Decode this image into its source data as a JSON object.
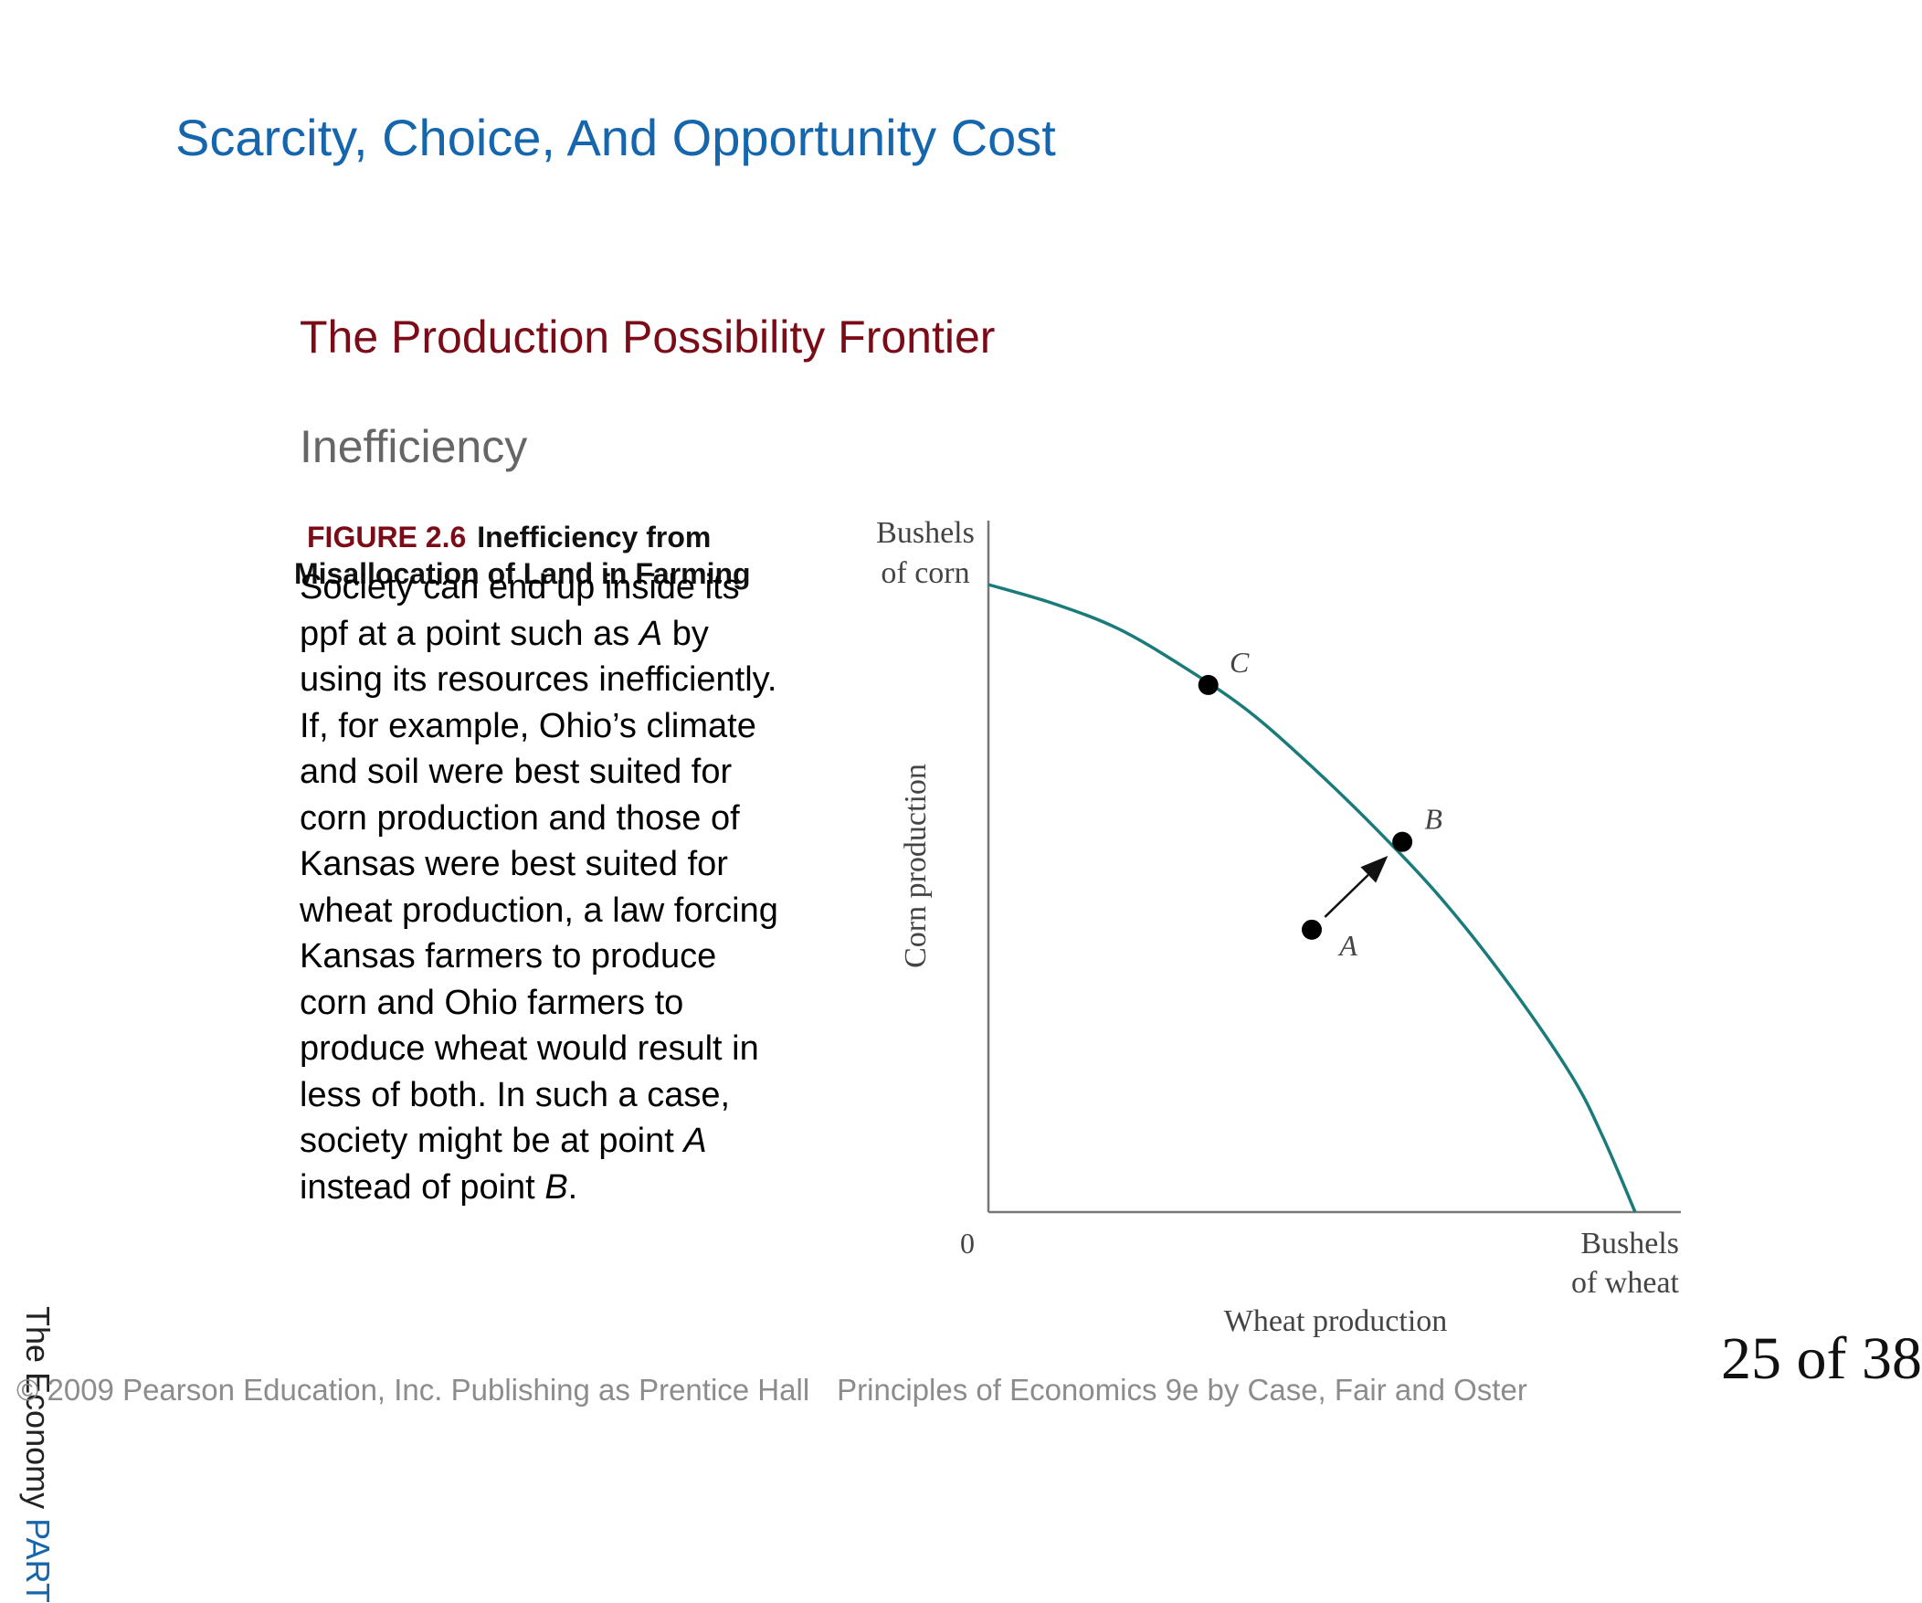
{
  "slide": {
    "title": "Scarcity, Choice, And Opportunity Cost",
    "section_title": "The Production Possibility Frontier",
    "subsection_title": "Inefficiency"
  },
  "caption": {
    "bullet_glyph": "",
    "figure_number": "FIGURE 2.6",
    "figure_title": "Inefficiency from Misallocation of Land in Farming"
  },
  "body": {
    "paragraph1": {
      "before": "Society can end up inside its ppf  at a point such as ",
      "point": "A",
      "after": " by using its resources inefficiently."
    },
    "paragraph2": {
      "before": "If, for example, Ohio’s climate and soil were best suited for corn production and those of Kansas were best suited for wheat production, a law forcing Kansas farmers to produce corn and Ohio farmers to produce wheat would result in less of both. In such a case, society might be at point ",
      "point_a": "A",
      "middle": " instead of point ",
      "point_b": "B",
      "after": "."
    }
  },
  "chart_data": {
    "type": "line",
    "title": "",
    "ylabel": "Corn production",
    "xlabel": "Wheat production",
    "y_axis_unit_label": [
      "Bushels",
      "of corn"
    ],
    "x_axis_unit_label": [
      "Bushels",
      "of wheat"
    ],
    "origin_label": "0",
    "series": [
      {
        "name": "",
        "x": [
          0,
          0.1,
          0.2,
          0.3,
          0.4,
          0.5,
          0.6,
          0.7,
          0.8,
          0.9,
          0.95,
          1.0
        ],
        "y": [
          1.0,
          0.97,
          0.93,
          0.87,
          0.8,
          0.71,
          0.61,
          0.5,
          0.37,
          0.22,
          0.12,
          0.0
        ]
      }
    ],
    "points": [
      {
        "label": "C",
        "x": 0.34,
        "y": 0.84,
        "on_frontier": true
      },
      {
        "label": "B",
        "x": 0.64,
        "y": 0.59,
        "on_frontier": true
      },
      {
        "label": "A",
        "x": 0.5,
        "y": 0.45,
        "on_frontier": false
      }
    ],
    "arrow": {
      "from": "A",
      "to": "B"
    },
    "xlim": [
      0,
      1.0
    ],
    "ylim": [
      0,
      1.0
    ],
    "grid": false,
    "curve_color": "#1b7b7b"
  },
  "sidebar_vertical": {
    "black": "The Economy",
    "blue": "PART"
  },
  "footer": {
    "copyright": "© 2009 Pearson Education, Inc. Publishing as Prentice Hall",
    "book": "Principles of Economics 9e by Case, Fair and Oster"
  },
  "page_number": "25 of 38"
}
